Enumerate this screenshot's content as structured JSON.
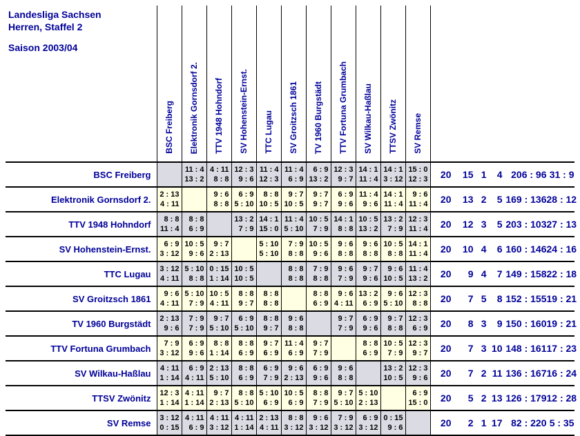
{
  "title": {
    "line1": "Landesliga Sachsen",
    "line2": "Herren, Staffel 2",
    "line3": "Saison 2003/04"
  },
  "colors": {
    "heading_text": "#000099",
    "cell_text": "#000000",
    "row_gray": "#dbdbe4",
    "row_cream": "#ffffe4",
    "border": "#000000"
  },
  "columns": [
    "BSC Freiberg",
    "Elektronik Gornsdorf 2.",
    "TTV 1948 Hohndorf",
    "SV Hohenstein-Ernst.",
    "TTC Lugau",
    "SV Groitzsch 1861",
    "TV 1960 Burgstädt",
    "TTV Fortuna Grumbach",
    "SV Wilkau-Haßlau",
    "TTSV Zwönitz",
    "SV Remse"
  ],
  "rows": [
    {
      "team": "BSC Freiberg",
      "cells": [
        null,
        [
          "11 : 4",
          "13 : 2"
        ],
        [
          "4 : 11",
          "8 : 8"
        ],
        [
          "12 : 3",
          "9 : 6"
        ],
        [
          "11 : 4",
          "12 : 3"
        ],
        [
          "11 : 4",
          "6 : 9"
        ],
        [
          "6 : 9",
          "13 : 2"
        ],
        [
          "12 : 3",
          "9 : 7"
        ],
        [
          "14 : 1",
          "11 : 4"
        ],
        [
          "14 : 1",
          "3 : 12"
        ],
        [
          "15 : 0",
          "12 : 3"
        ]
      ],
      "games": "20",
      "wins": "15",
      "draws": "1",
      "losses": "4",
      "sets": "206 : 96",
      "points": "31 : 9"
    },
    {
      "team": "Elektronik Gornsdorf 2.",
      "cells": [
        [
          "2 : 13",
          "4 : 11"
        ],
        null,
        [
          "9 : 6",
          "8 : 8"
        ],
        [
          "6 : 9",
          "5 : 10"
        ],
        [
          "8 : 8",
          "10 : 5"
        ],
        [
          "9 : 7",
          "10 : 5"
        ],
        [
          "9 : 7",
          "9 : 7"
        ],
        [
          "6 : 9",
          "9 : 6"
        ],
        [
          "11 : 4",
          "9 : 6"
        ],
        [
          "14 : 1",
          "11 : 4"
        ],
        [
          "9 : 6",
          "11 : 4"
        ]
      ],
      "games": "20",
      "wins": "13",
      "draws": "2",
      "losses": "5",
      "sets": "169 : 136",
      "points": "28 : 12"
    },
    {
      "team": "TTV 1948 Hohndorf",
      "cells": [
        [
          "8 : 8",
          "11 : 4"
        ],
        [
          "8 : 8",
          "6 : 9"
        ],
        null,
        [
          "13 : 2",
          "7 : 9"
        ],
        [
          "14 : 1",
          "15 : 0"
        ],
        [
          "11 : 4",
          "5 : 10"
        ],
        [
          "10 : 5",
          "7 : 9"
        ],
        [
          "14 : 1",
          "8 : 8"
        ],
        [
          "10 : 5",
          "13 : 2"
        ],
        [
          "13 : 2",
          "7 : 9"
        ],
        [
          "12 : 3",
          "11 : 4"
        ]
      ],
      "games": "20",
      "wins": "12",
      "draws": "3",
      "losses": "5",
      "sets": "203 : 103",
      "points": "27 : 13"
    },
    {
      "team": "SV Hohenstein-Ernst.",
      "cells": [
        [
          "6 : 9",
          "3 : 12"
        ],
        [
          "10 : 5",
          "9 : 6"
        ],
        [
          "9 : 7",
          "2 : 13"
        ],
        null,
        [
          "5 : 10",
          "5 : 10"
        ],
        [
          "7 : 9",
          "8 : 8"
        ],
        [
          "10 : 5",
          "9 : 6"
        ],
        [
          "9 : 6",
          "8 : 8"
        ],
        [
          "9 : 6",
          "8 : 8"
        ],
        [
          "10 : 5",
          "8 : 8"
        ],
        [
          "14 : 1",
          "11 : 4"
        ]
      ],
      "games": "20",
      "wins": "10",
      "draws": "4",
      "losses": "6",
      "sets": "160 : 146",
      "points": "24 : 16"
    },
    {
      "team": "TTC Lugau",
      "cells": [
        [
          "3 : 12",
          "4 : 11"
        ],
        [
          "5 : 10",
          "8 : 8"
        ],
        [
          "0 : 15",
          "1 : 14"
        ],
        [
          "10 : 5",
          "10 : 5"
        ],
        null,
        [
          "8 : 8",
          "8 : 8"
        ],
        [
          "7 : 9",
          "8 : 8"
        ],
        [
          "9 : 6",
          "7 : 9"
        ],
        [
          "9 : 7",
          "9 : 6"
        ],
        [
          "9 : 6",
          "10 : 5"
        ],
        [
          "11 : 4",
          "13 : 2"
        ]
      ],
      "games": "20",
      "wins": "9",
      "draws": "4",
      "losses": "7",
      "sets": "149 : 158",
      "points": "22 : 18"
    },
    {
      "team": "SV Groitzsch 1861",
      "cells": [
        [
          "9 : 6",
          "4 : 11"
        ],
        [
          "5 : 10",
          "7 : 9"
        ],
        [
          "10 : 5",
          "4 : 11"
        ],
        [
          "8 : 8",
          "9 : 7"
        ],
        [
          "8 : 8",
          "8 : 8"
        ],
        null,
        [
          "8 : 8",
          "6 : 9"
        ],
        [
          "9 : 6",
          "4 : 11"
        ],
        [
          "13 : 2",
          "6 : 9"
        ],
        [
          "9 : 6",
          "5 : 10"
        ],
        [
          "12 : 3",
          "8 : 8"
        ]
      ],
      "games": "20",
      "wins": "7",
      "draws": "5",
      "losses": "8",
      "sets": "152 : 155",
      "points": "19 : 21"
    },
    {
      "team": "TV 1960 Burgstädt",
      "cells": [
        [
          "2 : 13",
          "9 : 6"
        ],
        [
          "7 : 9",
          "7 : 9"
        ],
        [
          "9 : 7",
          "5 : 10"
        ],
        [
          "6 : 9",
          "5 : 10"
        ],
        [
          "8 : 8",
          "9 : 7"
        ],
        [
          "9 : 6",
          "8 : 8"
        ],
        null,
        [
          "9 : 7",
          "7 : 9"
        ],
        [
          "6 : 9",
          "9 : 6"
        ],
        [
          "9 : 7",
          "8 : 8"
        ],
        [
          "12 : 3",
          "6 : 9"
        ]
      ],
      "games": "20",
      "wins": "8",
      "draws": "3",
      "losses": "9",
      "sets": "150 : 160",
      "points": "19 : 21"
    },
    {
      "team": "TTV Fortuna Grumbach",
      "cells": [
        [
          "7 : 9",
          "3 : 12"
        ],
        [
          "6 : 9",
          "9 : 6"
        ],
        [
          "8 : 8",
          "1 : 14"
        ],
        [
          "8 : 8",
          "6 : 9"
        ],
        [
          "9 : 7",
          "6 : 9"
        ],
        [
          "11 : 4",
          "6 : 9"
        ],
        [
          "9 : 7",
          "7 : 9"
        ],
        null,
        [
          "8 : 8",
          "6 : 9"
        ],
        [
          "10 : 5",
          "7 : 9"
        ],
        [
          "12 : 3",
          "9 : 7"
        ]
      ],
      "games": "20",
      "wins": "7",
      "draws": "3",
      "losses": "10",
      "sets": "148 : 161",
      "points": "17 : 23"
    },
    {
      "team": "SV Wilkau-Haßlau",
      "cells": [
        [
          "4 : 11",
          "1 : 14"
        ],
        [
          "6 : 9",
          "4 : 11"
        ],
        [
          "2 : 13",
          "5 : 10"
        ],
        [
          "8 : 8",
          "6 : 9"
        ],
        [
          "6 : 9",
          "7 : 9"
        ],
        [
          "9 : 6",
          "2 : 13"
        ],
        [
          "6 : 9",
          "9 : 6"
        ],
        [
          "9 : 6",
          "8 : 8"
        ],
        null,
        [
          "13 : 2",
          "10 : 5"
        ],
        [
          "12 : 3",
          "9 : 6"
        ]
      ],
      "games": "20",
      "wins": "7",
      "draws": "2",
      "losses": "11",
      "sets": "136 : 167",
      "points": "16 : 24"
    },
    {
      "team": "TTSV Zwönitz",
      "cells": [
        [
          "12 : 3",
          "1 : 14"
        ],
        [
          "4 : 11",
          "1 : 14"
        ],
        [
          "9 : 7",
          "2 : 13"
        ],
        [
          "8 : 8",
          "5 : 10"
        ],
        [
          "5 : 10",
          "6 : 9"
        ],
        [
          "10 : 5",
          "6 : 9"
        ],
        [
          "8 : 8",
          "7 : 9"
        ],
        [
          "9 : 7",
          "5 : 10"
        ],
        [
          "5 : 10",
          "2 : 13"
        ],
        null,
        [
          "6 : 9",
          "15 : 0"
        ]
      ],
      "games": "20",
      "wins": "5",
      "draws": "2",
      "losses": "13",
      "sets": "126 : 179",
      "points": "12 : 28"
    },
    {
      "team": "SV Remse",
      "cells": [
        [
          "3 : 12",
          "0 : 15"
        ],
        [
          "4 : 11",
          "6 : 9"
        ],
        [
          "4 : 11",
          "3 : 12"
        ],
        [
          "4 : 11",
          "1 : 14"
        ],
        [
          "2 : 13",
          "4 : 11"
        ],
        [
          "8 : 8",
          "3 : 12"
        ],
        [
          "9 : 6",
          "3 : 12"
        ],
        [
          "7 : 9",
          "3 : 12"
        ],
        [
          "6 : 9",
          "3 : 12"
        ],
        [
          "0 : 15",
          "9 : 6"
        ],
        null
      ],
      "games": "20",
      "wins": "2",
      "draws": "1",
      "losses": "17",
      "sets": "82 : 220",
      "points": "5 : 35"
    }
  ]
}
